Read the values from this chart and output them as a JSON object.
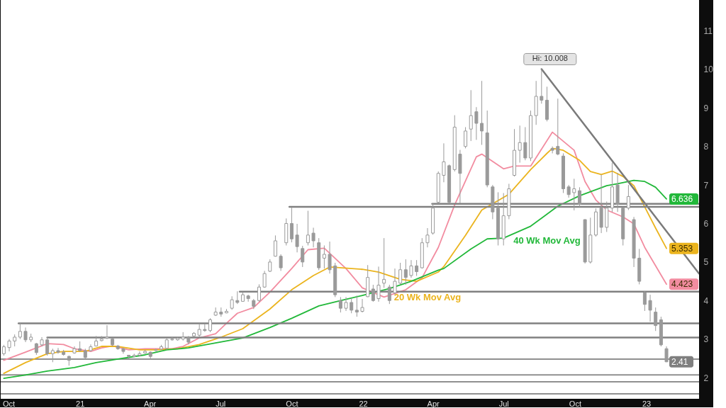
{
  "chart_data": {
    "type": "candlestick",
    "color": "#9a9a9a",
    "xlim": [
      "2020-09-21",
      "2023-03-10"
    ],
    "ylim": [
      1.45,
      11.8
    ],
    "xticks": [
      {
        "value": "2020-10-01",
        "label": "Oct"
      },
      {
        "value": "2021-01-01",
        "label": "21"
      },
      {
        "value": "2021-04-01",
        "label": "Apr"
      },
      {
        "value": "2021-07-01",
        "label": "Jul"
      },
      {
        "value": "2021-10-01",
        "label": "Oct"
      },
      {
        "value": "2022-01-01",
        "label": "22"
      },
      {
        "value": "2022-04-01",
        "label": "Apr"
      },
      {
        "value": "2022-07-01",
        "label": "Jul"
      },
      {
        "value": "2022-10-01",
        "label": "Oct"
      },
      {
        "value": "2023-01-01",
        "label": "23"
      }
    ],
    "yticks": [
      2,
      3,
      4,
      5,
      6,
      7,
      8,
      9,
      10,
      11
    ],
    "x": [
      "2020-09-25",
      "2020-10-02",
      "2020-10-09",
      "2020-10-16",
      "2020-10-23",
      "2020-10-30",
      "2020-11-06",
      "2020-11-13",
      "2020-11-20",
      "2020-11-27",
      "2020-12-04",
      "2020-12-11",
      "2020-12-18",
      "2020-12-25",
      "2021-01-01",
      "2021-01-08",
      "2021-01-15",
      "2021-01-22",
      "2021-01-29",
      "2021-02-05",
      "2021-02-12",
      "2021-02-19",
      "2021-02-26",
      "2021-03-05",
      "2021-03-12",
      "2021-03-19",
      "2021-03-26",
      "2021-04-02",
      "2021-04-09",
      "2021-04-16",
      "2021-04-23",
      "2021-04-30",
      "2021-05-07",
      "2021-05-14",
      "2021-05-21",
      "2021-05-28",
      "2021-06-04",
      "2021-06-11",
      "2021-06-18",
      "2021-06-25",
      "2021-07-02",
      "2021-07-09",
      "2021-07-16",
      "2021-07-23",
      "2021-07-30",
      "2021-08-06",
      "2021-08-13",
      "2021-08-20",
      "2021-08-27",
      "2021-09-03",
      "2021-09-10",
      "2021-09-17",
      "2021-09-24",
      "2021-10-01",
      "2021-10-08",
      "2021-10-15",
      "2021-10-22",
      "2021-10-29",
      "2021-11-05",
      "2021-11-12",
      "2021-11-19",
      "2021-11-26",
      "2021-12-03",
      "2021-12-10",
      "2021-12-17",
      "2021-12-24",
      "2021-12-31",
      "2022-01-07",
      "2022-01-14",
      "2022-01-21",
      "2022-01-28",
      "2022-02-04",
      "2022-02-11",
      "2022-02-18",
      "2022-02-25",
      "2022-03-04",
      "2022-03-11",
      "2022-03-18",
      "2022-03-25",
      "2022-04-01",
      "2022-04-08",
      "2022-04-15",
      "2022-04-22",
      "2022-04-29",
      "2022-05-06",
      "2022-05-13",
      "2022-05-20",
      "2022-05-27",
      "2022-06-03",
      "2022-06-10",
      "2022-06-17",
      "2022-06-24",
      "2022-07-01",
      "2022-07-08",
      "2022-07-15",
      "2022-07-22",
      "2022-07-29",
      "2022-08-05",
      "2022-08-12",
      "2022-08-19",
      "2022-08-26",
      "2022-09-02",
      "2022-09-09",
      "2022-09-16",
      "2022-09-23",
      "2022-09-30",
      "2022-10-07",
      "2022-10-14",
      "2022-10-21",
      "2022-10-28",
      "2022-11-04",
      "2022-11-11",
      "2022-11-18",
      "2022-11-25",
      "2022-12-02",
      "2022-12-09",
      "2022-12-16",
      "2022-12-23",
      "2022-12-30",
      "2023-01-06",
      "2023-01-13",
      "2023-01-20",
      "2023-01-27"
    ],
    "ohlc": [
      [
        2.62,
        2.85,
        2.57,
        2.8
      ],
      [
        2.78,
        3.0,
        2.68,
        2.95
      ],
      [
        2.95,
        3.12,
        2.81,
        3.05
      ],
      [
        3.05,
        3.41,
        3.0,
        3.2
      ],
      [
        3.2,
        3.3,
        2.92,
        2.98
      ],
      [
        2.98,
        3.14,
        2.92,
        3.05
      ],
      [
        2.88,
        2.9,
        2.59,
        2.65
      ],
      [
        2.85,
        3.05,
        2.81,
        2.98
      ],
      [
        2.98,
        3.05,
        2.57,
        2.62
      ],
      [
        2.62,
        2.75,
        2.4,
        2.7
      ],
      [
        2.7,
        2.77,
        2.62,
        2.66
      ],
      [
        2.66,
        2.72,
        2.57,
        2.6
      ],
      [
        2.55,
        2.57,
        2.31,
        2.45
      ],
      [
        2.64,
        2.81,
        2.62,
        2.75
      ],
      [
        2.75,
        2.94,
        2.68,
        2.7
      ],
      [
        2.7,
        2.75,
        2.5,
        2.52
      ],
      [
        2.7,
        2.86,
        2.68,
        2.8
      ],
      [
        2.82,
        3.08,
        2.81,
        2.95
      ],
      [
        2.96,
        3.08,
        2.94,
        3.0
      ],
      [
        3.02,
        3.36,
        3.0,
        3.05
      ],
      [
        3.0,
        3.03,
        2.81,
        2.85
      ],
      [
        2.82,
        2.85,
        2.72,
        2.75
      ],
      [
        2.75,
        2.77,
        2.62,
        2.68
      ],
      [
        2.58,
        2.59,
        2.5,
        2.55
      ],
      [
        2.55,
        2.62,
        2.53,
        2.58
      ],
      [
        2.58,
        2.68,
        2.55,
        2.62
      ],
      [
        2.64,
        2.72,
        2.62,
        2.68
      ],
      [
        2.66,
        2.68,
        2.48,
        2.55
      ],
      [
        2.7,
        2.75,
        2.68,
        2.72
      ],
      [
        2.74,
        2.85,
        2.72,
        2.8
      ],
      [
        2.76,
        3.03,
        2.72,
        2.98
      ],
      [
        2.98,
        3.05,
        2.96,
        3.0
      ],
      [
        2.98,
        3.05,
        2.96,
        3.02
      ],
      [
        3.0,
        3.18,
        2.96,
        3.05
      ],
      [
        3.05,
        3.08,
        2.86,
        2.92
      ],
      [
        3.08,
        3.18,
        3.05,
        3.15
      ],
      [
        3.1,
        3.38,
        3.05,
        3.25
      ],
      [
        3.25,
        3.4,
        3.19,
        3.22
      ],
      [
        3.22,
        3.54,
        3.18,
        3.5
      ],
      [
        3.62,
        3.82,
        3.6,
        3.7
      ],
      [
        3.7,
        3.82,
        3.58,
        3.65
      ],
      [
        3.68,
        3.78,
        3.67,
        3.72
      ],
      [
        3.8,
        4.11,
        3.76,
        4.02
      ],
      [
        4.0,
        4.24,
        3.91,
        3.95
      ],
      [
        3.98,
        4.22,
        3.97,
        4.15
      ],
      [
        4.12,
        4.15,
        3.97,
        4.05
      ],
      [
        4.0,
        4.04,
        3.78,
        3.85
      ],
      [
        4.0,
        4.42,
        3.97,
        4.35
      ],
      [
        4.35,
        4.77,
        4.33,
        4.7
      ],
      [
        4.76,
        5.07,
        4.74,
        5.0
      ],
      [
        5.15,
        5.69,
        5.14,
        5.55
      ],
      [
        5.15,
        5.2,
        4.77,
        4.85
      ],
      [
        5.5,
        6.13,
        5.43,
        6.0
      ],
      [
        6.0,
        6.41,
        5.51,
        5.6
      ],
      [
        5.7,
        5.99,
        5.25,
        5.4
      ],
      [
        5.35,
        5.42,
        4.87,
        5.0
      ],
      [
        5.5,
        6.33,
        5.43,
        5.7
      ],
      [
        5.75,
        5.89,
        5.38,
        5.55
      ],
      [
        5.5,
        5.62,
        4.79,
        4.85
      ],
      [
        5.1,
        5.43,
        4.83,
        5.2
      ],
      [
        5.2,
        5.53,
        4.7,
        4.8
      ],
      [
        4.9,
        4.98,
        4.09,
        4.15
      ],
      [
        4.0,
        4.09,
        3.69,
        3.8
      ],
      [
        3.8,
        4.09,
        3.73,
        3.95
      ],
      [
        3.95,
        4.06,
        3.67,
        3.75
      ],
      [
        3.75,
        4.13,
        3.58,
        3.7
      ],
      [
        3.72,
        4.04,
        3.69,
        3.82
      ],
      [
        4.1,
        4.92,
        4.09,
        4.6
      ],
      [
        4.3,
        4.41,
        3.97,
        4.0
      ],
      [
        4.05,
        4.88,
        3.97,
        4.4
      ],
      [
        4.45,
        5.62,
        4.33,
        4.55
      ],
      [
        4.35,
        4.41,
        3.91,
        4.0
      ],
      [
        4.2,
        4.83,
        4.15,
        4.5
      ],
      [
        4.45,
        4.98,
        4.41,
        4.8
      ],
      [
        4.8,
        5.07,
        4.41,
        4.6
      ],
      [
        4.65,
        5.05,
        4.59,
        4.9
      ],
      [
        4.9,
        5.05,
        4.64,
        4.75
      ],
      [
        4.85,
        5.62,
        4.83,
        5.5
      ],
      [
        5.5,
        5.88,
        5.38,
        5.7
      ],
      [
        5.75,
        6.52,
        5.71,
        6.4
      ],
      [
        6.55,
        7.35,
        6.52,
        7.3
      ],
      [
        7.25,
        8.08,
        7.07,
        7.6
      ],
      [
        7.5,
        7.53,
        6.52,
        6.55
      ],
      [
        7.4,
        8.81,
        7.35,
        8.5
      ],
      [
        7.8,
        7.91,
        6.52,
        7.3
      ],
      [
        8.0,
        8.5,
        7.95,
        8.4
      ],
      [
        8.45,
        9.46,
        8.14,
        8.8
      ],
      [
        8.9,
        9.02,
        8.17,
        8.6
      ],
      [
        8.6,
        9.7,
        8.04,
        8.4
      ],
      [
        8.35,
        8.93,
        6.94,
        7.0
      ],
      [
        6.95,
        7.0,
        6.11,
        6.3
      ],
      [
        6.4,
        6.81,
        5.43,
        5.6
      ],
      [
        5.6,
        6.79,
        5.43,
        6.2
      ],
      [
        6.2,
        7.03,
        6.11,
        6.9
      ],
      [
        7.25,
        8.45,
        7.22,
        7.9
      ],
      [
        7.9,
        8.54,
        7.58,
        8.1
      ],
      [
        8.1,
        8.5,
        7.64,
        7.7
      ],
      [
        7.7,
        8.93,
        7.62,
        8.8
      ],
      [
        8.8,
        9.7,
        8.56,
        9.3
      ],
      [
        9.3,
        10.008,
        9.11,
        9.2
      ],
      [
        9.2,
        9.55,
        8.65,
        8.7
      ],
      [
        7.95,
        8.0,
        7.82,
        7.9
      ],
      [
        8.0,
        9.24,
        7.77,
        7.8
      ],
      [
        7.75,
        7.82,
        6.79,
        6.9
      ],
      [
        6.95,
        7.0,
        6.67,
        6.75
      ],
      [
        6.8,
        7.16,
        6.34,
        6.9
      ],
      [
        6.85,
        6.94,
        6.43,
        6.5
      ],
      [
        6.1,
        6.11,
        4.96,
        5.0
      ],
      [
        5.0,
        6.15,
        4.96,
        5.7
      ],
      [
        5.7,
        6.39,
        5.66,
        6.3
      ],
      [
        6.4,
        7.27,
        5.75,
        5.9
      ],
      [
        5.9,
        6.57,
        5.78,
        6.4
      ],
      [
        6.4,
        7.58,
        6.3,
        6.95
      ],
      [
        7.0,
        7.31,
        6.3,
        6.5
      ],
      [
        6.4,
        6.43,
        5.43,
        5.6
      ],
      [
        6.4,
        7.0,
        6.35,
        6.7
      ],
      [
        6.1,
        6.17,
        4.87,
        5.1
      ],
      [
        5.1,
        5.34,
        4.42,
        4.5
      ],
      [
        4.2,
        4.24,
        3.73,
        3.9
      ],
      [
        4.0,
        4.15,
        3.45,
        3.75
      ],
      [
        3.7,
        3.82,
        3.21,
        3.35
      ],
      [
        3.5,
        3.58,
        2.81,
        2.85
      ],
      [
        2.75,
        2.81,
        2.4,
        2.41
      ]
    ],
    "value_labels": [
      null,
      null,
      null,
      null,
      null,
      null,
      null,
      null,
      null,
      null,
      null,
      null,
      null,
      null,
      null,
      null,
      null,
      null,
      null,
      null,
      null,
      null,
      null,
      null,
      null,
      null,
      null,
      null,
      null,
      null,
      null,
      null,
      null,
      null,
      null,
      null,
      null,
      null,
      null,
      null,
      null,
      null,
      null,
      null,
      null,
      null,
      null,
      null,
      null,
      null,
      null,
      null,
      null,
      null,
      null,
      null,
      null,
      null,
      null,
      null,
      null,
      null,
      null,
      null,
      null,
      null,
      null,
      null,
      null,
      null,
      null,
      null,
      null,
      null,
      null,
      null,
      null,
      null,
      null,
      null,
      null,
      null,
      null,
      null,
      null,
      null,
      null,
      null,
      null,
      null,
      null,
      null,
      null,
      null,
      null,
      null,
      null,
      null,
      null,
      null,
      null,
      null,
      null,
      null,
      null,
      null,
      null,
      null,
      null,
      null,
      null,
      null,
      null,
      null,
      null,
      null,
      null,
      null,
      null,
      null,
      null,
      null,
      "2.41"
    ],
    "series": [
      {
        "type": "line",
        "color": "#f28ca0",
        "x": [
          "2020-09-25",
          "2020-10-23",
          "2020-11-06",
          "2020-11-20",
          "2020-12-11",
          "2020-12-25",
          "2021-01-15",
          "2021-01-29",
          "2021-02-12",
          "2021-03-05",
          "2021-03-26",
          "2021-04-09",
          "2021-04-30",
          "2021-05-14",
          "2021-06-04",
          "2021-06-25",
          "2021-07-09",
          "2021-07-23",
          "2021-08-13",
          "2021-09-03",
          "2021-10-01",
          "2021-10-22",
          "2021-11-12",
          "2021-12-10",
          "2021-12-31",
          "2022-01-28",
          "2022-02-25",
          "2022-03-18",
          "2022-04-08",
          "2022-04-29",
          "2022-05-27",
          "2022-06-03",
          "2022-07-01",
          "2022-07-15",
          "2022-08-05",
          "2022-09-02",
          "2022-09-30",
          "2022-10-14",
          "2022-10-28",
          "2022-11-11",
          "2022-12-02",
          "2022-12-16",
          "2022-12-30",
          "2023-01-27"
        ],
        "values": [
          2.45,
          2.66,
          2.77,
          2.88,
          2.86,
          2.75,
          2.68,
          2.77,
          2.82,
          2.72,
          2.75,
          2.75,
          2.75,
          2.81,
          3.03,
          3.14,
          3.41,
          3.67,
          3.82,
          4.22,
          4.83,
          5.32,
          5.36,
          4.83,
          4.33,
          4.09,
          4.28,
          4.59,
          5.38,
          6.48,
          7.73,
          7.8,
          7.42,
          7.49,
          7.49,
          8.37,
          7.9,
          7.09,
          6.61,
          6.35,
          6.17,
          5.99,
          5.38,
          4.423
        ],
        "value_labels": [
          null,
          null,
          null,
          null,
          null,
          null,
          null,
          null,
          null,
          null,
          null,
          null,
          null,
          null,
          null,
          null,
          null,
          null,
          null,
          null,
          null,
          null,
          null,
          null,
          null,
          null,
          null,
          null,
          null,
          null,
          null,
          null,
          null,
          null,
          null,
          null,
          null,
          null,
          null,
          null,
          null,
          null,
          null,
          "4.423"
        ]
      },
      {
        "type": "line",
        "color": "#ebb41e",
        "x": [
          "2020-09-25",
          "2020-10-23",
          "2020-11-20",
          "2020-12-11",
          "2021-01-08",
          "2021-01-29",
          "2021-02-19",
          "2021-03-19",
          "2021-04-09",
          "2021-05-07",
          "2021-06-04",
          "2021-07-02",
          "2021-07-30",
          "2021-09-03",
          "2021-10-01",
          "2021-10-29",
          "2021-11-19",
          "2021-12-31",
          "2022-01-21",
          "2022-02-18",
          "2022-03-11",
          "2022-04-08",
          "2022-04-15",
          "2022-05-13",
          "2022-06-03",
          "2022-07-08",
          "2022-08-05",
          "2022-08-26",
          "2022-09-02",
          "2022-09-16",
          "2022-10-07",
          "2022-10-21",
          "2022-11-04",
          "2022-11-18",
          "2022-12-02",
          "2022-12-16",
          "2022-12-30",
          "2023-01-13",
          "2023-01-27"
        ],
        "values": [
          2.11,
          2.39,
          2.62,
          2.68,
          2.68,
          2.81,
          2.81,
          2.72,
          2.72,
          2.75,
          2.86,
          3.05,
          3.27,
          3.78,
          4.28,
          4.65,
          4.87,
          4.81,
          4.74,
          4.55,
          4.5,
          4.74,
          4.88,
          5.69,
          6.35,
          6.76,
          7.4,
          7.82,
          7.95,
          7.9,
          7.64,
          7.35,
          7.27,
          7.36,
          7.22,
          6.98,
          6.43,
          5.88,
          5.353
        ],
        "value_labels": [
          null,
          null,
          null,
          null,
          null,
          null,
          null,
          null,
          null,
          null,
          null,
          null,
          null,
          null,
          null,
          null,
          null,
          null,
          null,
          null,
          null,
          null,
          null,
          null,
          null,
          null,
          null,
          null,
          null,
          null,
          null,
          null,
          null,
          null,
          null,
          null,
          null,
          null,
          "5.353"
        ]
      },
      {
        "type": "line",
        "color": "#22b83a",
        "x": [
          "2020-09-25",
          "2020-10-23",
          "2020-11-20",
          "2020-12-25",
          "2021-01-22",
          "2021-02-19",
          "2021-03-26",
          "2021-04-23",
          "2021-05-21",
          "2021-06-25",
          "2021-07-30",
          "2021-09-03",
          "2021-10-01",
          "2021-11-05",
          "2021-12-03",
          "2021-12-31",
          "2022-02-04",
          "2022-03-04",
          "2022-04-08",
          "2022-04-15",
          "2022-05-20",
          "2022-06-10",
          "2022-07-01",
          "2022-08-05",
          "2022-09-09",
          "2022-10-07",
          "2022-11-11",
          "2022-11-25",
          "2022-12-16",
          "2022-12-30",
          "2023-01-13",
          "2023-01-27"
        ],
        "values": [
          1.98,
          2.07,
          2.17,
          2.26,
          2.39,
          2.48,
          2.59,
          2.72,
          2.77,
          2.9,
          3.03,
          3.3,
          3.54,
          3.86,
          4.0,
          4.13,
          4.31,
          4.5,
          4.79,
          4.83,
          5.34,
          5.6,
          5.62,
          5.93,
          6.45,
          6.72,
          6.98,
          7.03,
          7.12,
          7.09,
          6.94,
          6.636
        ],
        "value_labels": [
          null,
          null,
          null,
          null,
          null,
          null,
          null,
          null,
          null,
          null,
          null,
          null,
          null,
          null,
          null,
          null,
          null,
          null,
          null,
          null,
          null,
          null,
          null,
          null,
          null,
          null,
          null,
          null,
          null,
          null,
          null,
          "6.636"
        ]
      },
      {
        "type": "line",
        "color": "#7a7a7a",
        "x": [
          "2022-08-19",
          "2023-03-10"
        ],
        "values": [
          10.008,
          4.7
        ]
      },
      {
        "type": "line",
        "color": "#808080",
        "x": [
          "2021-09-28",
          "2023-03-10"
        ],
        "values": [
          6.43,
          6.43
        ]
      },
      {
        "type": "line",
        "color": "#808080",
        "x": [
          "2022-03-31",
          "2023-03-10"
        ],
        "values": [
          6.51,
          6.51
        ]
      },
      {
        "type": "line",
        "color": "#808080",
        "x": [
          "2021-07-26",
          "2023-03-10"
        ],
        "values": [
          4.23,
          4.23
        ]
      },
      {
        "type": "line",
        "color": "#808080",
        "x": [
          "2020-10-14",
          "2023-03-10"
        ],
        "values": [
          3.41,
          3.41
        ]
      },
      {
        "type": "line",
        "color": "#808080",
        "x": [
          "2020-11-20",
          "2023-03-10"
        ],
        "values": [
          3.04,
          3.04
        ]
      }
    ],
    "ref_lines": [
      {
        "axis": "y",
        "value": 2.48,
        "color": "#909090"
      },
      {
        "axis": "y",
        "value": 2.07,
        "color": "#909090"
      },
      {
        "axis": "y",
        "value": 1.89,
        "color": "#909090"
      },
      {
        "axis": "y",
        "value": 1.58,
        "color": "#909090"
      }
    ],
    "annotations": [
      {
        "text": "Hi: 10.008",
        "x": "2022-08-19",
        "y": 10.008
      },
      {
        "text": "40 Wk Mov Avg",
        "x": "2022-07-01",
        "y": 5.62
      },
      {
        "text": "20 Wk Mov Avg",
        "x": "2022-03-25",
        "y": 4.31
      }
    ]
  }
}
